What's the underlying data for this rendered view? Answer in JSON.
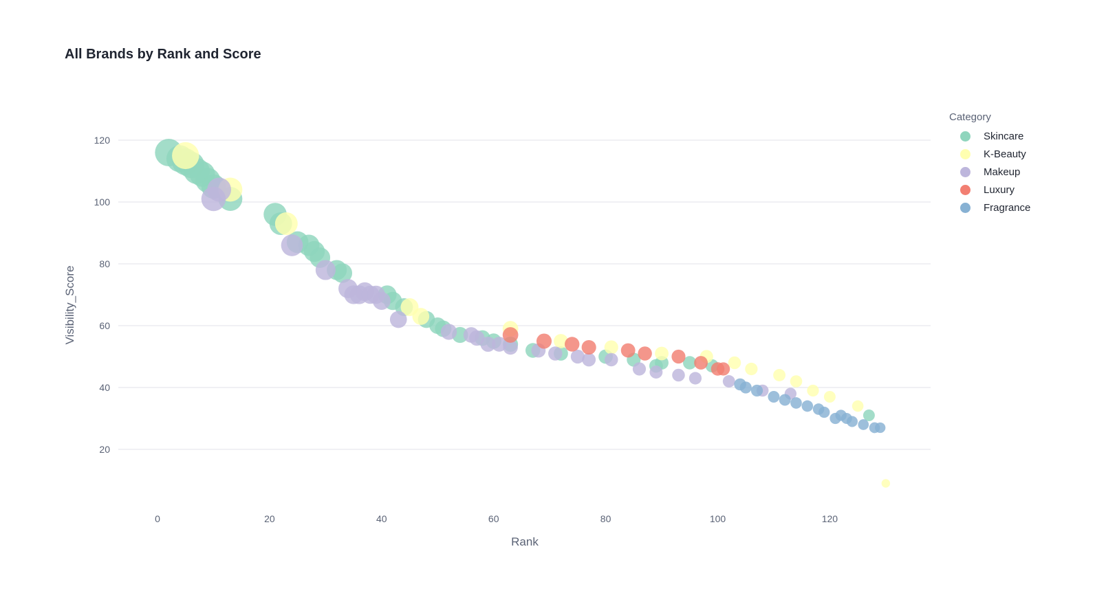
{
  "chart_data": {
    "type": "scatter",
    "title": "All Brands by Rank and Score",
    "xlabel": "Rank",
    "ylabel": "Visibility_Score",
    "xlim": [
      -7,
      138
    ],
    "ylim": [
      2,
      132
    ],
    "xticks": [
      0,
      20,
      40,
      60,
      80,
      100,
      120
    ],
    "yticks": [
      20,
      40,
      60,
      80,
      100,
      120
    ],
    "grid": "horizontal",
    "legend_title": "Category",
    "legend_position": "right",
    "series": [
      {
        "name": "Skincare",
        "color": "#8fd5bd",
        "points": [
          [
            2,
            116
          ],
          [
            4,
            114
          ],
          [
            5,
            113
          ],
          [
            6,
            112
          ],
          [
            7,
            110
          ],
          [
            8,
            109
          ],
          [
            9,
            107
          ],
          [
            10,
            105
          ],
          [
            13,
            101
          ],
          [
            21,
            96
          ],
          [
            22,
            93
          ],
          [
            25,
            87
          ],
          [
            27,
            86
          ],
          [
            28,
            84
          ],
          [
            29,
            82
          ],
          [
            32,
            78
          ],
          [
            33,
            77
          ],
          [
            41,
            70
          ],
          [
            42,
            68
          ],
          [
            44,
            66
          ],
          [
            48,
            62
          ],
          [
            50,
            60
          ],
          [
            51,
            59
          ],
          [
            54,
            57
          ],
          [
            58,
            56
          ],
          [
            60,
            55
          ],
          [
            63,
            54
          ],
          [
            67,
            52
          ],
          [
            72,
            51
          ],
          [
            80,
            50
          ],
          [
            85,
            49
          ],
          [
            89,
            47
          ],
          [
            90,
            48
          ],
          [
            95,
            48
          ],
          [
            99,
            47
          ],
          [
            127,
            31
          ]
        ],
        "sizes": [
          1.0,
          0.98,
          0.97,
          0.95,
          0.93,
          0.9,
          0.88,
          0.86,
          0.84,
          0.8,
          0.78,
          0.74,
          0.72,
          0.7,
          0.68,
          0.66,
          0.64,
          0.6,
          0.58,
          0.56,
          0.52,
          0.5,
          0.5,
          0.48,
          0.46,
          0.45,
          0.44,
          0.42,
          0.4,
          0.4,
          0.38,
          0.37,
          0.37,
          0.36,
          0.35,
          0.28
        ]
      },
      {
        "name": "K-Beauty",
        "color": "#ffffb0",
        "points": [
          [
            5,
            115
          ],
          [
            13,
            104
          ],
          [
            23,
            93
          ],
          [
            45,
            66
          ],
          [
            47,
            63
          ],
          [
            63,
            59
          ],
          [
            72,
            55
          ],
          [
            81,
            53
          ],
          [
            90,
            51
          ],
          [
            98,
            50
          ],
          [
            103,
            48
          ],
          [
            106,
            46
          ],
          [
            111,
            44
          ],
          [
            114,
            42
          ],
          [
            117,
            39
          ],
          [
            120,
            37
          ],
          [
            125,
            34
          ],
          [
            130,
            9
          ]
        ],
        "sizes": [
          0.98,
          0.84,
          0.78,
          0.56,
          0.52,
          0.46,
          0.4,
          0.38,
          0.37,
          0.35,
          0.33,
          0.32,
          0.31,
          0.3,
          0.29,
          0.28,
          0.27,
          0.14
        ]
      },
      {
        "name": "Makeup",
        "color": "#bdb6dc",
        "points": [
          [
            10,
            101
          ],
          [
            11,
            104
          ],
          [
            24,
            86
          ],
          [
            30,
            78
          ],
          [
            34,
            72
          ],
          [
            35,
            70
          ],
          [
            36,
            70
          ],
          [
            37,
            71
          ],
          [
            38,
            70
          ],
          [
            39,
            70
          ],
          [
            40,
            68
          ],
          [
            43,
            62
          ],
          [
            52,
            58
          ],
          [
            56,
            57
          ],
          [
            57,
            56
          ],
          [
            59,
            54
          ],
          [
            61,
            54
          ],
          [
            63,
            53
          ],
          [
            68,
            52
          ],
          [
            71,
            51
          ],
          [
            75,
            50
          ],
          [
            77,
            49
          ],
          [
            81,
            49
          ],
          [
            86,
            46
          ],
          [
            89,
            45
          ],
          [
            93,
            44
          ],
          [
            96,
            43
          ],
          [
            102,
            42
          ],
          [
            108,
            39
          ],
          [
            113,
            38
          ]
        ],
        "sizes": [
          0.86,
          0.84,
          0.74,
          0.66,
          0.62,
          0.6,
          0.6,
          0.6,
          0.58,
          0.58,
          0.56,
          0.52,
          0.48,
          0.46,
          0.45,
          0.44,
          0.43,
          0.42,
          0.4,
          0.39,
          0.38,
          0.37,
          0.36,
          0.35,
          0.34,
          0.33,
          0.32,
          0.31,
          0.3,
          0.29
        ]
      },
      {
        "name": "Luxury",
        "color": "#f27f72",
        "points": [
          [
            63,
            57
          ],
          [
            69,
            55
          ],
          [
            74,
            54
          ],
          [
            77,
            53
          ],
          [
            84,
            52
          ],
          [
            87,
            51
          ],
          [
            93,
            50
          ],
          [
            97,
            48
          ],
          [
            100,
            46
          ],
          [
            101,
            46
          ]
        ],
        "sizes": [
          0.46,
          0.44,
          0.42,
          0.41,
          0.4,
          0.39,
          0.38,
          0.37,
          0.36,
          0.35
        ]
      },
      {
        "name": "Fragrance",
        "color": "#87b1d3",
        "points": [
          [
            104,
            41
          ],
          [
            105,
            40
          ],
          [
            107,
            39
          ],
          [
            110,
            37
          ],
          [
            112,
            36
          ],
          [
            114,
            35
          ],
          [
            116,
            34
          ],
          [
            118,
            33
          ],
          [
            119,
            32
          ],
          [
            121,
            30
          ],
          [
            122,
            31
          ],
          [
            123,
            30
          ],
          [
            124,
            29
          ],
          [
            126,
            28
          ],
          [
            128,
            27
          ],
          [
            129,
            27
          ]
        ],
        "sizes": [
          0.3,
          0.29,
          0.29,
          0.28,
          0.28,
          0.27,
          0.27,
          0.27,
          0.26,
          0.26,
          0.26,
          0.25,
          0.25,
          0.24,
          0.24,
          0.23
        ]
      }
    ]
  }
}
